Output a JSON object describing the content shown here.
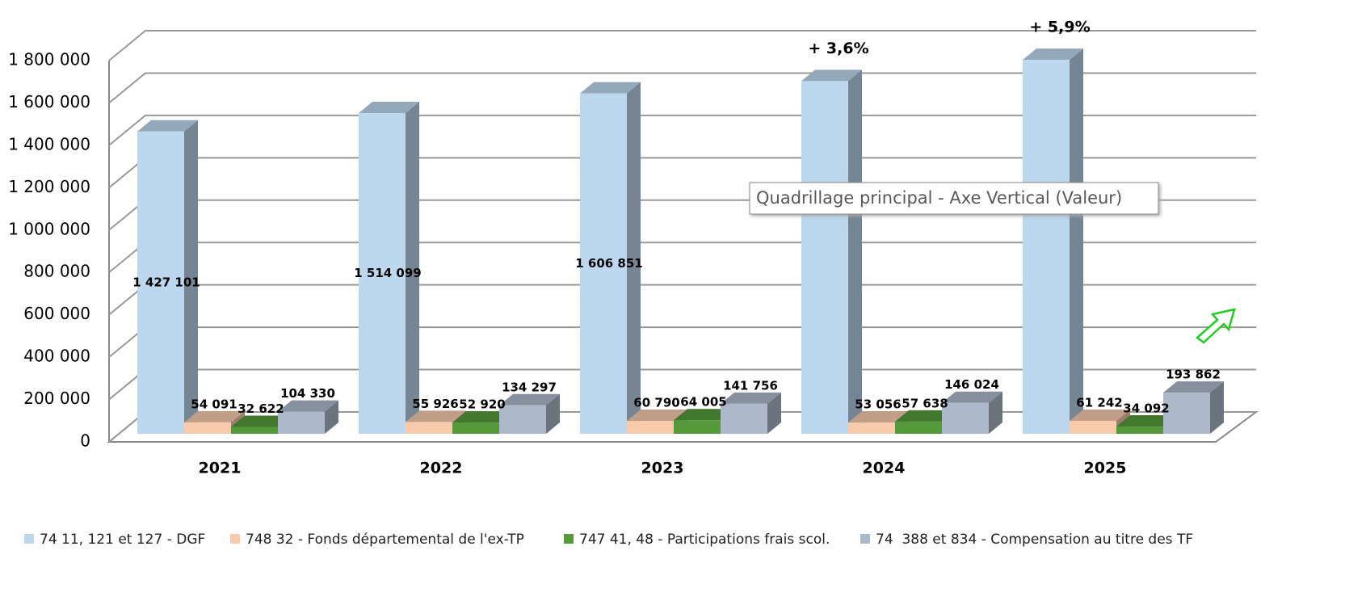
{
  "chart_data": {
    "type": "bar3d",
    "categories": [
      "2021",
      "2022",
      "2023",
      "2024",
      "2025"
    ],
    "series": [
      {
        "name": "74 11, 121 et 127 - DGF",
        "color": "#bdd7ee",
        "values": [
          1427101,
          1514099,
          1606851,
          1665000,
          1765000
        ],
        "value_labels": [
          "1 427 101",
          "1 514 099",
          "1 606 851",
          null,
          null
        ]
      },
      {
        "name": "748 32 - Fonds départemental de l'ex-TP",
        "color": "#f8cbad",
        "values": [
          54091,
          55926,
          60790,
          53056,
          61242
        ],
        "value_labels": [
          "54 091",
          "55 926",
          "60 790",
          "53 056",
          "61 242"
        ]
      },
      {
        "name": "747 41, 48 - Participations frais scol.",
        "color": "#549a3a",
        "values": [
          32622,
          52920,
          64005,
          57638,
          34092
        ],
        "value_labels": [
          "32 622",
          "52 920",
          "64 005",
          "57 638",
          "34 092"
        ]
      },
      {
        "name": "74  388 et 834 - Compensation au titre des TF",
        "color": "#adb9ca",
        "values": [
          104330,
          134297,
          141756,
          146024,
          193862
        ],
        "value_labels": [
          "104 330",
          "134 297",
          "141 756",
          "146 024",
          "193 862"
        ]
      }
    ],
    "ylim": [
      0,
      1800000
    ],
    "yticks": [
      0,
      {
        "value": 200000,
        "label": "200 000"
      },
      {
        "value": 400000,
        "label": "400 000"
      },
      {
        "value": 600000,
        "label": "600 000"
      },
      {
        "value": 800000,
        "label": "800 000"
      },
      {
        "value": 1000000,
        "label": "1 000 000"
      },
      {
        "value": 1200000,
        "label": "1 200 000"
      },
      {
        "value": 1400000,
        "label": "1 400 000"
      },
      {
        "value": 1600000,
        "label": "1 600 000"
      },
      {
        "value": 1800000,
        "label": "1 800 000"
      }
    ],
    "grid": true,
    "legend": "bottom",
    "annotations": [
      {
        "text": "+ 3,6%",
        "category": "2024"
      },
      {
        "text": "+ 5,9%",
        "category": "2025"
      }
    ],
    "tooltip": "Quadrillage principal - Axe Vertical (Valeur)"
  }
}
